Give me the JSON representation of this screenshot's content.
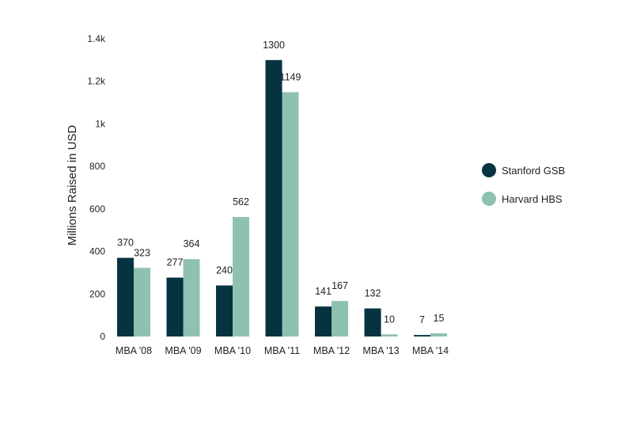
{
  "chart_data": {
    "type": "bar",
    "ylabel": "Millions Raised in USD",
    "categories": [
      "MBA '08",
      "MBA '09",
      "MBA '10",
      "MBA '11",
      "MBA '12",
      "MBA '13",
      "MBA '14"
    ],
    "series": [
      {
        "name": "Stanford GSB",
        "color": "#06333f",
        "values": [
          370,
          277,
          240,
          1300,
          141,
          132,
          7
        ]
      },
      {
        "name": "Harvard HBS",
        "color": "#8fc1b2",
        "values": [
          323,
          364,
          562,
          1149,
          167,
          10,
          15
        ]
      }
    ],
    "value_labels": [
      [
        "370",
        "277",
        "240",
        "1300",
        "141",
        "132",
        "7"
      ],
      [
        "323",
        "364",
        "562",
        "1149",
        "167",
        "10",
        "15"
      ]
    ],
    "ylim": [
      0,
      1400
    ],
    "yticks": [
      0,
      200,
      400,
      600,
      800,
      1000,
      1200,
      1400
    ],
    "ytick_labels": [
      "0",
      "200",
      "400",
      "600",
      "800",
      "1k",
      "1.2k",
      "1.4k"
    ],
    "grid": false,
    "legend_position": "right"
  }
}
